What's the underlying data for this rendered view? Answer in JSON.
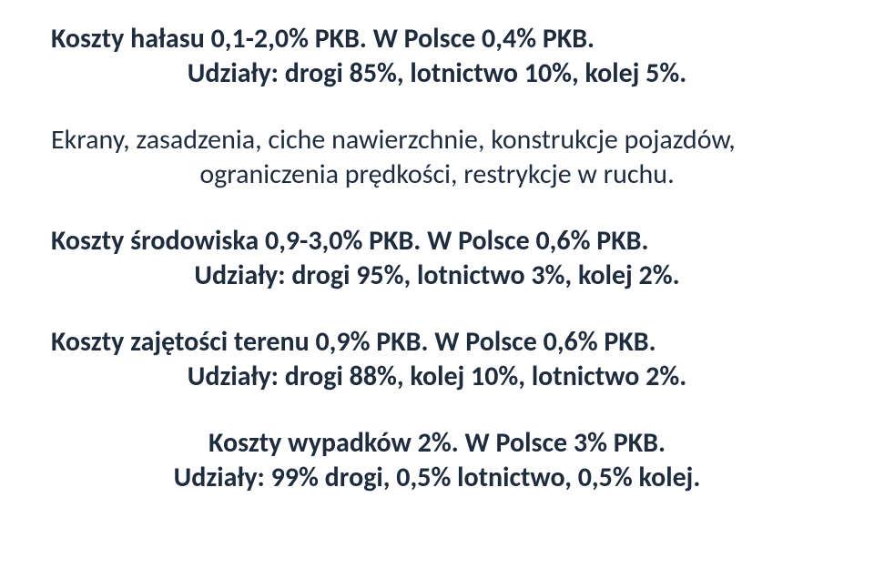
{
  "text_color": "#1f2c3d",
  "background_color": "#ffffff",
  "font_family": "Calibri",
  "blocks": {
    "b1": {
      "line1": "Koszty hałasu 0,1-2,0% PKB. W Polsce 0,4% PKB.",
      "line2": "Udziały: drogi 85%, lotnictwo 10%, kolej 5%.",
      "bold": true
    },
    "b2": {
      "line1": "Ekrany, zasadzenia, ciche nawierzchnie, konstrukcje pojazdów,",
      "line2": "ograniczenia prędkości, restrykcje w ruchu.",
      "bold": false
    },
    "b3": {
      "line1": "Koszty środowiska 0,9-3,0% PKB. W Polsce 0,6% PKB.",
      "line2": "Udziały: drogi 95%, lotnictwo 3%, kolej 2%.",
      "bold": true
    },
    "b4": {
      "line1": "Koszty zajętości terenu 0,9% PKB. W Polsce 0,6% PKB.",
      "line2": "Udziały: drogi 88%, kolej 10%, lotnictwo 2%.",
      "bold": true
    },
    "b5": {
      "line1": "Koszty wypadków 2%. W Polsce 3% PKB.",
      "line2": "Udziały: 99% drogi, 0,5% lotnictwo, 0,5% kolej.",
      "bold": true
    }
  }
}
